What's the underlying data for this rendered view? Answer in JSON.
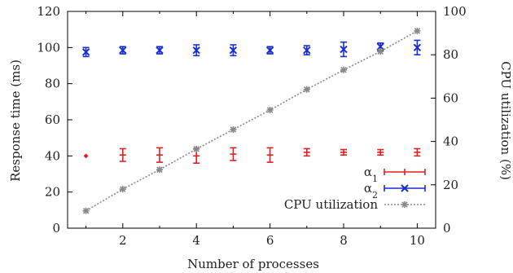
{
  "chart_data": {
    "type": "scatter",
    "xlabel": "Number of processes",
    "ylabel": "Response time (ms)",
    "y2label": "CPU utilization (%)",
    "xlim": [
      0.5,
      10.5
    ],
    "ylim": [
      0,
      120
    ],
    "y2lim": [
      0,
      100
    ],
    "xticks": [
      2,
      4,
      6,
      8,
      10
    ],
    "yticks": [
      0,
      20,
      40,
      60,
      80,
      100,
      120
    ],
    "y2ticks": [
      0,
      20,
      40,
      60,
      80,
      100
    ],
    "grid": false,
    "legend_position": "bottom-right",
    "series": [
      {
        "name": "α1",
        "name_base": "α",
        "name_sub": "1",
        "axis": "left",
        "style": "errorbar",
        "color": "#e02020",
        "x": [
          1,
          2,
          3,
          4,
          5,
          6,
          7,
          8,
          9,
          10
        ],
        "y": [
          40,
          40.5,
          40.5,
          40,
          41,
          40.5,
          42,
          42,
          42,
          42
        ],
        "err": [
          0,
          3.5,
          4,
          4,
          3.5,
          4,
          2,
          1.5,
          1.5,
          2
        ]
      },
      {
        "name": "α2",
        "name_base": "α",
        "name_sub": "2",
        "axis": "left",
        "style": "errorbar",
        "color": "#1a2fd0",
        "x": [
          1,
          2,
          3,
          4,
          5,
          6,
          7,
          8,
          9,
          10
        ],
        "y": [
          97.5,
          98.5,
          98.5,
          98.5,
          98.5,
          98.5,
          98.5,
          99,
          100.5,
          100
        ],
        "err": [
          2.5,
          2,
          2,
          3,
          3,
          2,
          2.5,
          4,
          2,
          4
        ]
      },
      {
        "name": "CPU utilization",
        "axis": "right",
        "style": "line",
        "color": "#888888",
        "x": [
          1,
          2,
          3,
          4,
          5,
          6,
          7,
          8,
          9,
          10
        ],
        "y": [
          8,
          18,
          27,
          36.5,
          45.5,
          54.5,
          64,
          73,
          81.5,
          91
        ]
      }
    ]
  }
}
